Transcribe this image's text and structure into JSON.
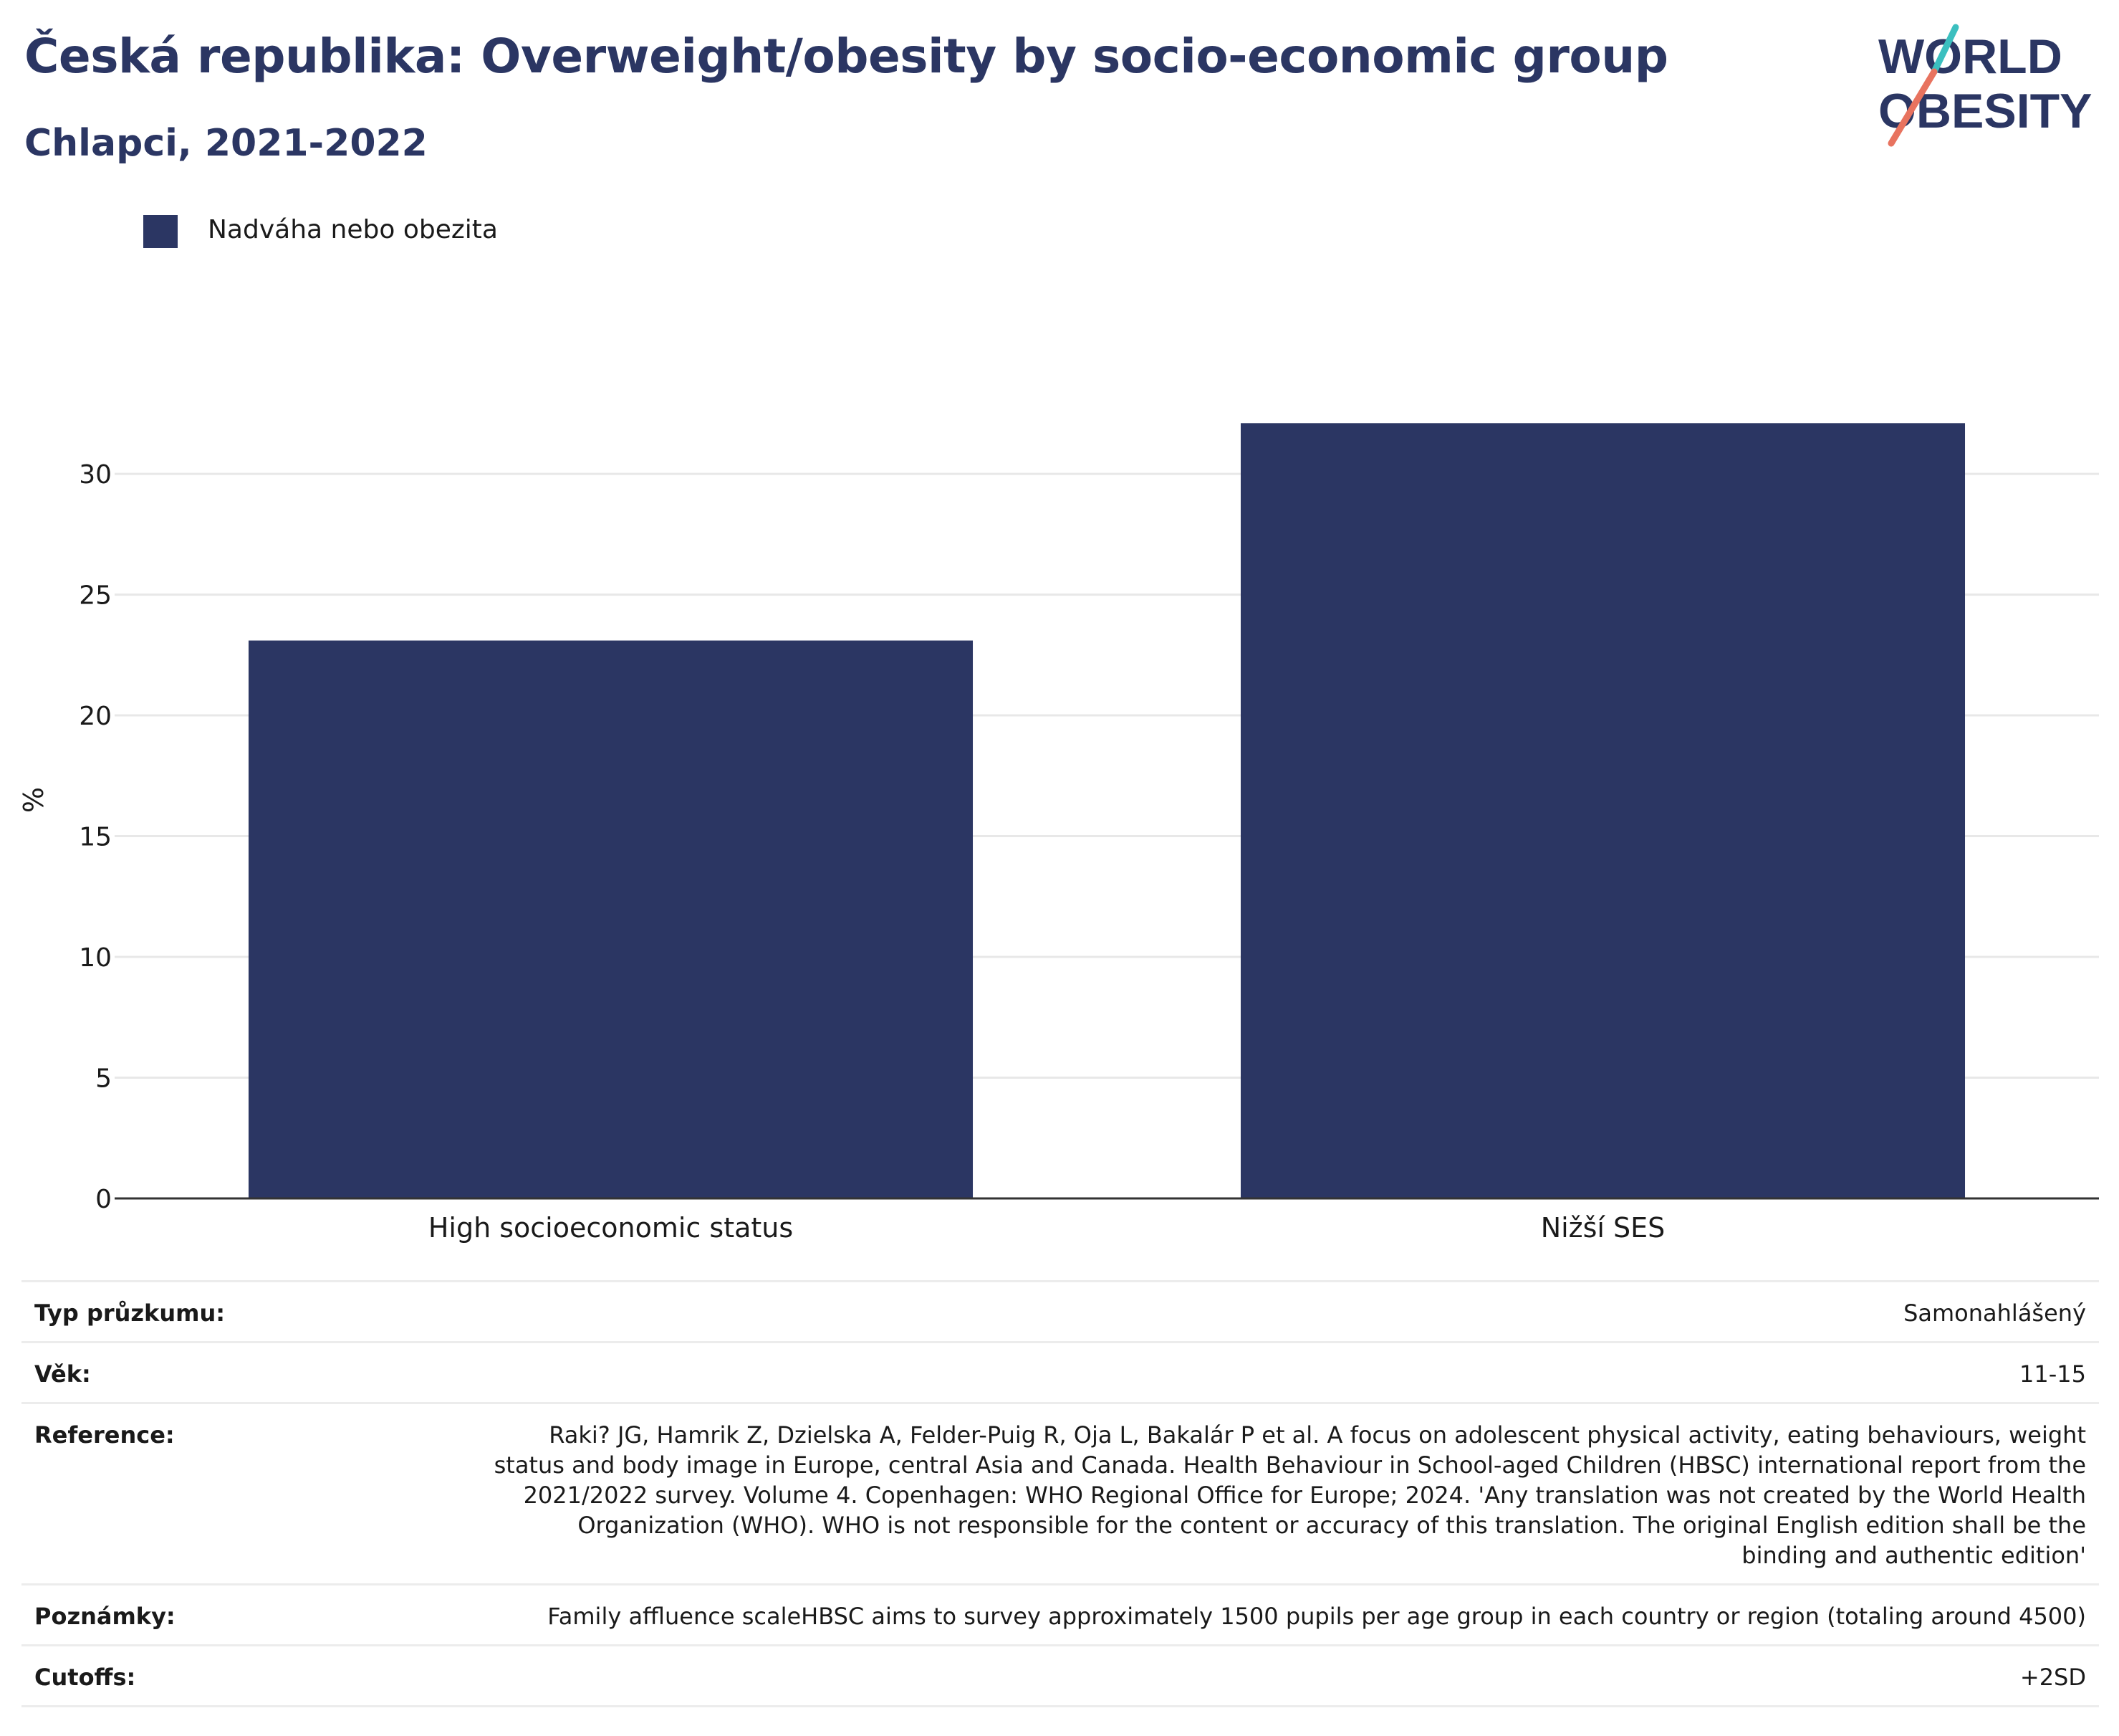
{
  "header": {
    "title": "Česká republika: Overweight/obesity by socio-economic group",
    "subtitle": "Chlapci, 2021-2022"
  },
  "logo": {
    "line1": "WORLD",
    "line2": "OBESITY",
    "accent_teal": "#3bbfbf",
    "accent_coral": "#e8735f"
  },
  "legend": {
    "label": "Nadváha nebo obezita",
    "color": "#2b3663"
  },
  "chart_data": {
    "type": "bar",
    "categories": [
      "High socioeconomic status",
      "Nižší SES"
    ],
    "series": [
      {
        "name": "Nadváha nebo obezita",
        "values": [
          23.1,
          32.1
        ],
        "color": "#2b3663"
      }
    ],
    "ylabel": "%",
    "xlabel": "",
    "ylim": [
      0,
      33
    ],
    "yticks": [
      0,
      5,
      10,
      15,
      20,
      25,
      30
    ],
    "grid": true
  },
  "info": [
    {
      "key": "Typ průzkumu:",
      "value": "Samonahlášený"
    },
    {
      "key": "Věk:",
      "value": "11-15"
    },
    {
      "key": "Reference:",
      "value": "Raki? JG, Hamrik Z, Dzielska A, Felder-Puig R, Oja L, Bakalár P et al. A focus on adolescent physical activity, eating behaviours, weight status and body image in Europe, central Asia and Canada. Health Behaviour in School-aged Children (HBSC) international report from the 2021/2022 survey. Volume 4. Copenhagen: WHO Regional Office for Europe; 2024. 'Any translation was not created by the World Health Organization (WHO). WHO is not responsible for the content or accuracy of this translation. The original English edition shall be the binding and authentic edition'"
    },
    {
      "key": "Poznámky:",
      "value": "Family affluence scaleHBSC aims to survey approximately 1500 pupils per age group in each country or region (totaling around 4500)"
    },
    {
      "key": "Cutoffs:",
      "value": "+2SD"
    }
  ]
}
